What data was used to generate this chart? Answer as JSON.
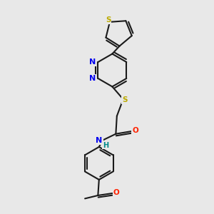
{
  "background_color": "#e8e8e8",
  "bond_color": "#1a1a1a",
  "N_color": "#0000ee",
  "S_color": "#bbaa00",
  "O_color": "#ff2200",
  "NH_color": "#008888",
  "H_color": "#008888",
  "figsize": [
    3.0,
    3.0
  ],
  "dpi": 100,
  "lw": 1.5,
  "fs": 7.5,
  "xlim": [
    0,
    10
  ],
  "ylim": [
    0,
    10
  ]
}
